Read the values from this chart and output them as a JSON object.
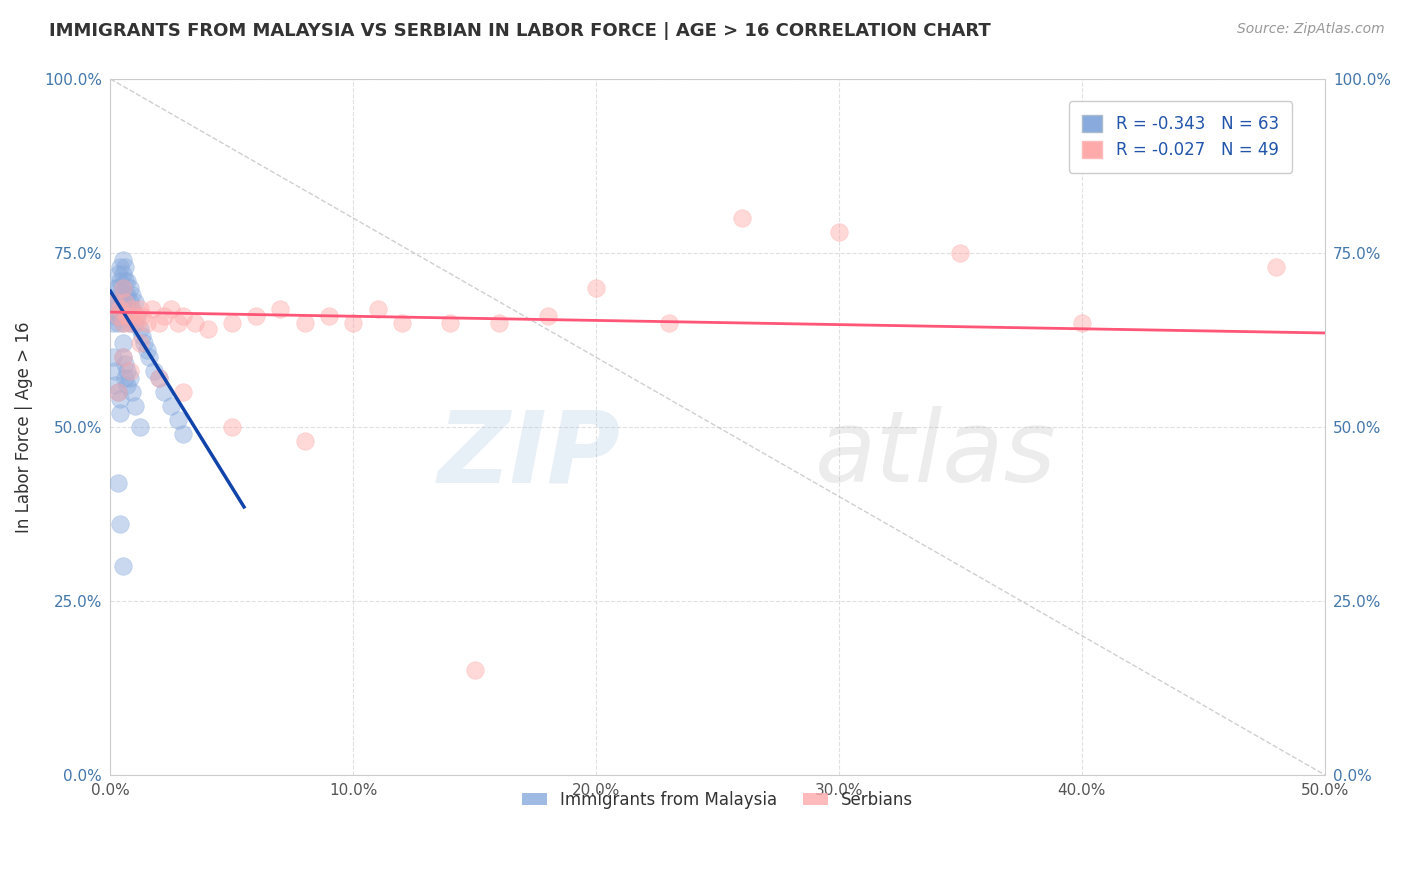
{
  "title": "IMMIGRANTS FROM MALAYSIA VS SERBIAN IN LABOR FORCE | AGE > 16 CORRELATION CHART",
  "source": "Source: ZipAtlas.com",
  "ylabel": "In Labor Force | Age > 16",
  "xlim": [
    0.0,
    0.5
  ],
  "ylim": [
    0.0,
    1.0
  ],
  "xtick_labels": [
    "0.0%",
    "10.0%",
    "20.0%",
    "30.0%",
    "40.0%",
    "50.0%"
  ],
  "xtick_values": [
    0.0,
    0.1,
    0.2,
    0.3,
    0.4,
    0.5
  ],
  "ytick_labels": [
    "0.0%",
    "25.0%",
    "50.0%",
    "75.0%",
    "100.0%"
  ],
  "ytick_values": [
    0.0,
    0.25,
    0.5,
    0.75,
    1.0
  ],
  "legend_blue_label": "R = -0.343   N = 63",
  "legend_pink_label": "R = -0.027   N = 49",
  "legend_bottom_blue": "Immigrants from Malaysia",
  "legend_bottom_pink": "Serbians",
  "blue_color": "#88AADD",
  "pink_color": "#FFAAAA",
  "blue_trend_color": "#1144AA",
  "pink_trend_color": "#FF5577",
  "blue_scatter_x": [
    0.001,
    0.001,
    0.002,
    0.002,
    0.002,
    0.003,
    0.003,
    0.003,
    0.003,
    0.004,
    0.004,
    0.004,
    0.004,
    0.005,
    0.005,
    0.005,
    0.005,
    0.005,
    0.006,
    0.006,
    0.006,
    0.006,
    0.007,
    0.007,
    0.007,
    0.008,
    0.008,
    0.008,
    0.009,
    0.009,
    0.01,
    0.01,
    0.011,
    0.012,
    0.013,
    0.014,
    0.015,
    0.016,
    0.018,
    0.02,
    0.022,
    0.025,
    0.028,
    0.03,
    0.001,
    0.002,
    0.002,
    0.003,
    0.004,
    0.004,
    0.005,
    0.005,
    0.006,
    0.006,
    0.007,
    0.007,
    0.008,
    0.009,
    0.01,
    0.012,
    0.003,
    0.004,
    0.005
  ],
  "blue_scatter_y": [
    0.67,
    0.65,
    0.7,
    0.68,
    0.66,
    0.72,
    0.7,
    0.68,
    0.65,
    0.73,
    0.71,
    0.69,
    0.66,
    0.74,
    0.72,
    0.7,
    0.67,
    0.65,
    0.73,
    0.71,
    0.69,
    0.66,
    0.71,
    0.69,
    0.67,
    0.7,
    0.68,
    0.65,
    0.69,
    0.67,
    0.68,
    0.65,
    0.66,
    0.64,
    0.63,
    0.62,
    0.61,
    0.6,
    0.58,
    0.57,
    0.55,
    0.53,
    0.51,
    0.49,
    0.6,
    0.58,
    0.56,
    0.55,
    0.54,
    0.52,
    0.62,
    0.6,
    0.59,
    0.57,
    0.58,
    0.56,
    0.57,
    0.55,
    0.53,
    0.5,
    0.42,
    0.36,
    0.3
  ],
  "pink_scatter_x": [
    0.002,
    0.003,
    0.004,
    0.005,
    0.005,
    0.006,
    0.007,
    0.008,
    0.009,
    0.01,
    0.011,
    0.012,
    0.013,
    0.015,
    0.017,
    0.02,
    0.022,
    0.025,
    0.028,
    0.03,
    0.035,
    0.04,
    0.05,
    0.06,
    0.07,
    0.08,
    0.09,
    0.1,
    0.11,
    0.12,
    0.14,
    0.16,
    0.18,
    0.2,
    0.23,
    0.26,
    0.3,
    0.35,
    0.4,
    0.48,
    0.003,
    0.005,
    0.008,
    0.012,
    0.02,
    0.03,
    0.05,
    0.08,
    0.15
  ],
  "pink_scatter_y": [
    0.68,
    0.66,
    0.67,
    0.65,
    0.7,
    0.68,
    0.66,
    0.65,
    0.67,
    0.66,
    0.65,
    0.67,
    0.66,
    0.65,
    0.67,
    0.65,
    0.66,
    0.67,
    0.65,
    0.66,
    0.65,
    0.64,
    0.65,
    0.66,
    0.67,
    0.65,
    0.66,
    0.65,
    0.67,
    0.65,
    0.65,
    0.65,
    0.66,
    0.7,
    0.65,
    0.8,
    0.78,
    0.75,
    0.65,
    0.73,
    0.55,
    0.6,
    0.58,
    0.62,
    0.57,
    0.55,
    0.5,
    0.48,
    0.15
  ],
  "blue_trend_x": [
    0.0,
    0.055
  ],
  "blue_trend_y": [
    0.695,
    0.385
  ],
  "pink_trend_x": [
    0.0,
    0.5
  ],
  "pink_trend_y": [
    0.665,
    0.635
  ],
  "diag_line_x": [
    0.0,
    0.5
  ],
  "diag_line_y": [
    1.0,
    0.0
  ],
  "background_color": "#FFFFFF",
  "grid_color": "#DDDDDD"
}
